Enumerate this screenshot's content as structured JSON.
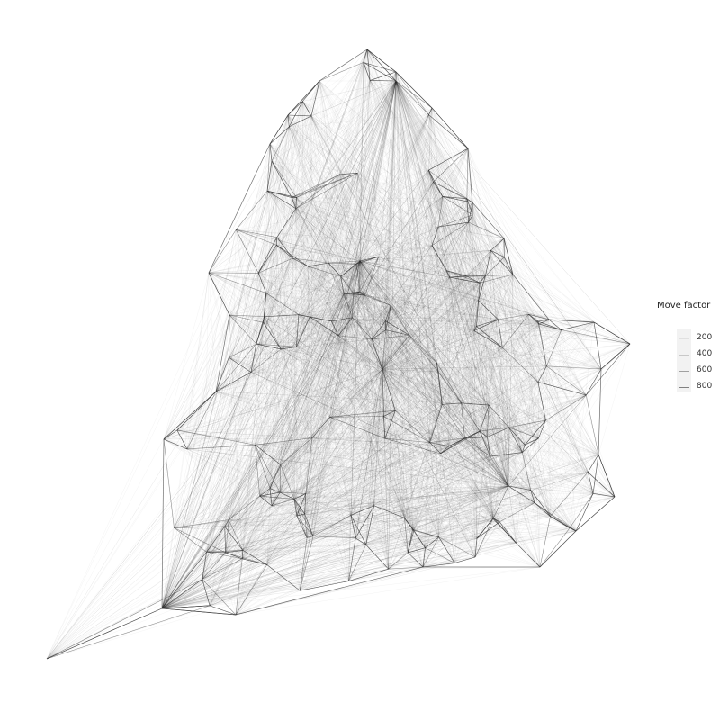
{
  "legend": {
    "title": "Move factor",
    "entries": [
      {
        "label": "200",
        "value": 200
      },
      {
        "label": "400",
        "value": 400
      },
      {
        "label": "600",
        "value": 600
      },
      {
        "label": "800",
        "value": 800
      }
    ]
  },
  "colors": {
    "edge": "#333333",
    "background": "#ffffff",
    "legend_key_bg": "#f2f2f2"
  }
}
